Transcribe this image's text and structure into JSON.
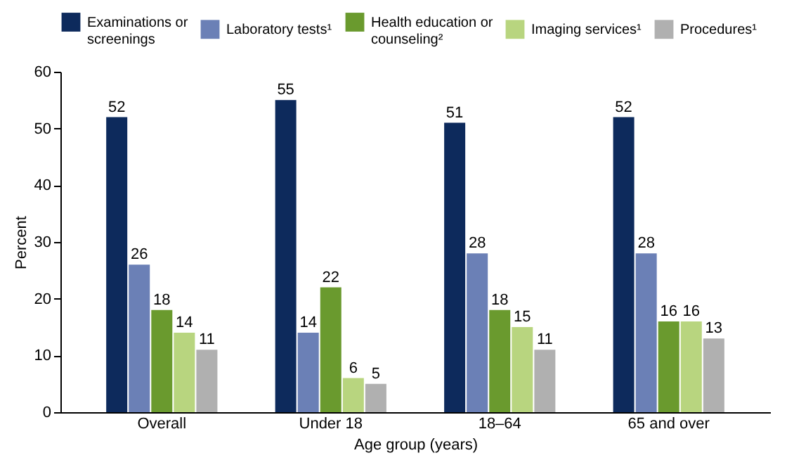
{
  "chart_data": {
    "type": "bar",
    "xlabel": "Age group (years)",
    "ylabel": "Percent",
    "categories": [
      "Overall",
      "Under 18",
      "18–64",
      "65 and over"
    ],
    "series": [
      {
        "name": "Examinations or screenings",
        "color": "#0d2a5c",
        "values": [
          52,
          55,
          51,
          52
        ]
      },
      {
        "name": "Laboratory tests¹",
        "color": "#6b80b6",
        "values": [
          26,
          14,
          28,
          28
        ]
      },
      {
        "name": "Health education or counseling²",
        "color": "#6a9a2e",
        "values": [
          18,
          22,
          18,
          16
        ]
      },
      {
        "name": "Imaging services¹",
        "color": "#b8d57f",
        "values": [
          14,
          6,
          15,
          16
        ]
      },
      {
        "name": "Procedures¹",
        "color": "#b0b0b0",
        "values": [
          11,
          5,
          11,
          13
        ]
      }
    ],
    "ylim": [
      0,
      60
    ],
    "yticks": [
      0,
      10,
      20,
      30,
      40,
      50,
      60
    ],
    "grid": false,
    "legend": "top",
    "data_labels": true
  }
}
